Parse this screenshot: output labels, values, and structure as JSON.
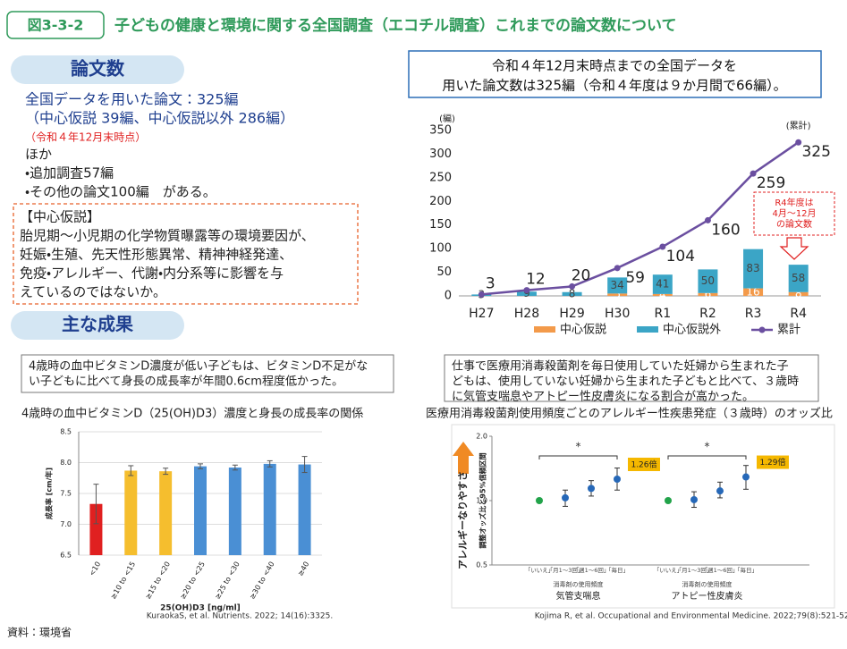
{
  "header": {
    "label": "図3-3-2",
    "title": "子どもの健康と環境に関する全国調査（エコチル調査）これまでの論文数について"
  },
  "papers": {
    "heading": "論文数",
    "lines": [
      "全国データを用いた論文：325編",
      "（中心仮説 39編、中心仮説以外 286編）"
    ],
    "note": "（令和４年12月末時点）",
    "other_lines": [
      "ほか",
      "・追加調査57編",
      "・その他の論文100編　がある。"
    ],
    "hypothesis": {
      "title": "【中心仮説】",
      "lines": [
        "胎児期〜小児期の化学物質曝露等の環境要因が、",
        "妊娠・生殖、先天性形態異常、精神神経発達、",
        "免疫・アレルギー、代謝・内分系等に影響を与",
        "えているのではないか。"
      ]
    }
  },
  "results_heading": "主な成果",
  "callout": [
    "令和４年12月末時点までの全国データを",
    "用いた論文数は325編（令和４年度は９か月間で66編）。"
  ],
  "chart_data": [
    {
      "type": "combo",
      "y_label": "(編)",
      "cumulative_label": "(累計)",
      "categories": [
        "H27",
        "H28",
        "H29",
        "H30",
        "R1",
        "R2",
        "R3",
        "R4"
      ],
      "series": [
        {
          "name": "中心仮説",
          "kind": "bar",
          "color": "#f39a4a",
          "values": [
            null,
            null,
            null,
            5,
            4,
            6,
            16,
            8
          ]
        },
        {
          "name": "中心仮説外",
          "kind": "bar",
          "color": "#3ba5c6",
          "values": [
            3,
            9,
            8,
            34,
            41,
            50,
            83,
            58
          ]
        },
        {
          "name": "累計",
          "kind": "line",
          "color": "#6b4fa0",
          "values": [
            3,
            12,
            20,
            59,
            104,
            160,
            259,
            325
          ]
        }
      ],
      "ylim": [
        0,
        350
      ],
      "yticks": [
        0,
        50,
        100,
        150,
        200,
        250,
        300,
        350
      ],
      "grid": false,
      "annotation": [
        "R4年度は",
        "4月～12月",
        "の論文数"
      ],
      "legend": "bottom"
    },
    {
      "type": "bar",
      "description": [
        "4歳時の血中ビタミンD濃度が低い子どもは、ビタミンD不足がな",
        "い子どもに比べて身長の成長率が年間0.6cm程度低かった。"
      ],
      "title": "4歳時の血中ビタミンD（25(OH)D3）濃度と身長の成長率の関係",
      "categories": [
        "<10",
        "≥10 to <15",
        "≥15 to <20",
        "≥20 to <25",
        "≥25 to <30",
        "≥30 to <40",
        "≥40"
      ],
      "values": [
        7.33,
        7.87,
        7.86,
        7.94,
        7.92,
        7.98,
        7.97
      ],
      "errors": [
        0.32,
        0.08,
        0.05,
        0.04,
        0.04,
        0.05,
        0.13
      ],
      "colors": [
        "#e02020",
        "#f5be2e",
        "#f5be2e",
        "#4a8fd4",
        "#4a8fd4",
        "#4a8fd4",
        "#4a8fd4"
      ],
      "ylim": [
        6.5,
        8.5
      ],
      "yticks": [
        6.5,
        {
          "value": 7,
          "label": "7.0"
        },
        7.5,
        {
          "value": 8,
          "label": "8.0"
        },
        8.5
      ],
      "grid": true,
      "y_label": "成長率 [cm/年]",
      "x_label": "25(OH)D3 [ng/ml]",
      "source": "KuraokaS, et al. Nutrients. 2022; 14(16):3325."
    },
    {
      "type": "dot",
      "description": [
        "仕事で医療用消毒殺菌剤を毎日使用していた妊婦から生まれた子",
        "どもは、使用していない妊婦から生まれた子どもと比べて、３歳時",
        "に気管支喘息やアトピー性皮膚炎になる割合が高かった。"
      ],
      "title": "医療用消毒殺菌剤使用頻度ごとのアレルギー性疾患発症（３歳時）のオッズ比",
      "categories": [
        "「いいえ」",
        "「月1～3回」",
        "「週1～6回」",
        "「毎日」"
      ],
      "series": [
        {
          "name": "気管支喘息",
          "color": "#2668b8",
          "values": [
            1.0,
            1.03,
            1.14,
            1.26
          ],
          "ci_low": [
            null,
            0.94,
            1.05,
            1.12
          ],
          "ci_high": [
            null,
            1.12,
            1.24,
            1.42
          ],
          "value_labels": [
            null,
            null,
            null,
            "1.26倍"
          ]
        },
        {
          "name": "アトピー性皮膚炎",
          "color": "#2668b8",
          "values": [
            1.0,
            1.01,
            1.11,
            1.29
          ],
          "ci_low": [
            null,
            0.93,
            1.03,
            1.13
          ],
          "ci_high": [
            null,
            1.1,
            1.22,
            1.46
          ],
          "value_labels": [
            null,
            null,
            null,
            "1.29倍"
          ]
        }
      ],
      "reference_color": "#22a34a",
      "label_color": "#f5b800",
      "log_scale": true,
      "ylim": [
        0.5,
        2.0
      ],
      "yticks": [
        0.5,
        {
          "value": 1,
          "label": "1.0"
        },
        {
          "value": 2,
          "label": "2.0"
        }
      ],
      "y_label": "調整オッズ比と95%信頼区間",
      "side_label": "アレルギーなりやすさ",
      "x_label": "消毒剤の使用頻度",
      "significance": "*",
      "source": "Kojima R, et al. Occupational and Environmental Medicine. 2022;79(8):521-526."
    }
  ],
  "source": "資料：環境省"
}
